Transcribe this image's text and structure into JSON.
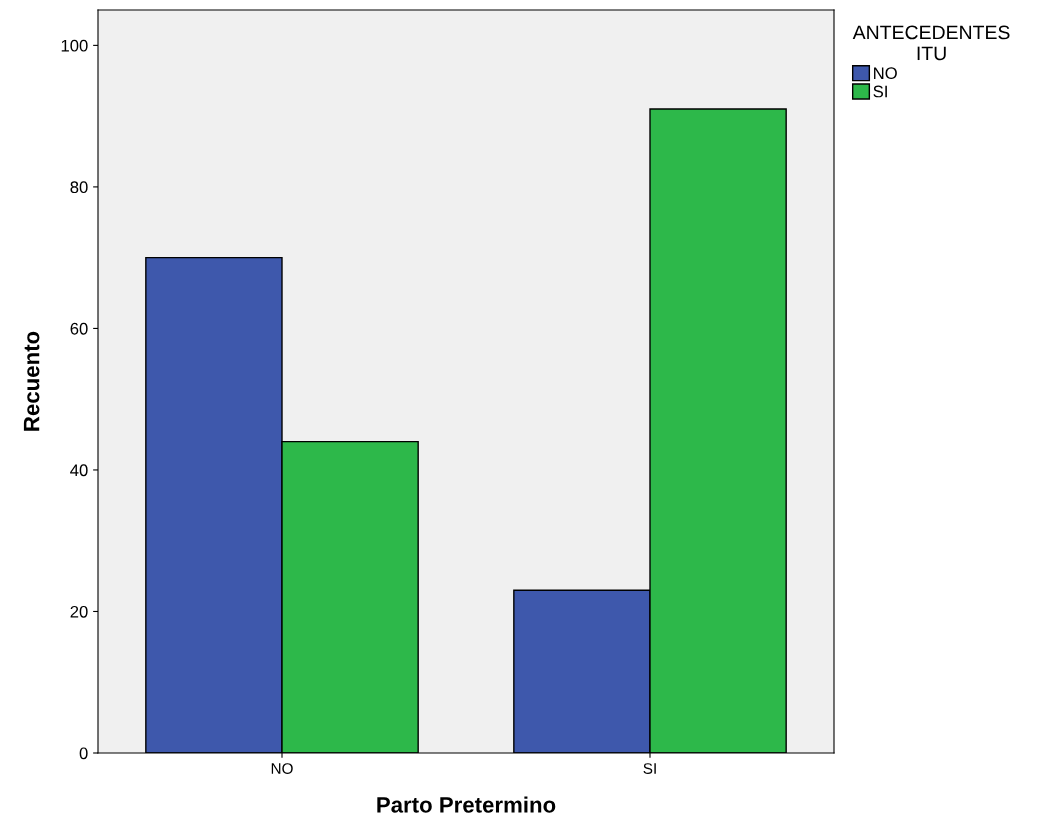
{
  "chart_data": {
    "type": "bar",
    "xlabel": "Parto Pretermino",
    "ylabel": "Recuento",
    "legend_title": "ANTECEDENTES\nITU",
    "categories": [
      "NO",
      "SI"
    ],
    "series": [
      {
        "name": "NO",
        "color": "#3e58ac",
        "values": [
          70,
          23
        ]
      },
      {
        "name": "SI",
        "color": "#2db84a",
        "values": [
          44,
          91
        ]
      }
    ],
    "ylim": [
      0,
      105
    ],
    "yticks": [
      0,
      20,
      40,
      60,
      80,
      100
    ],
    "grid": false,
    "legend": "top right"
  }
}
